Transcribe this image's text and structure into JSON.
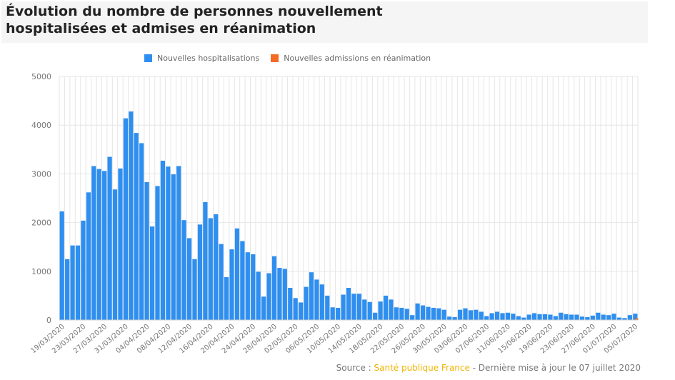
{
  "title": {
    "line1": "Évolution du nombre de personnes nouvellement",
    "line2": "hospitalisées et admises en réanimation"
  },
  "footer": {
    "prefix": "Source : ",
    "source": "Santé publique France",
    "suffix": " - Dernière mise à jour le 07 juillet 2020"
  },
  "colors": {
    "hospitalisations": "#2e8ff0",
    "reanimation": "#f36b24",
    "grid": "#e6e6e6",
    "source_accent": "#f0b400"
  },
  "chart_data": {
    "type": "bar",
    "ylim": [
      0,
      5000
    ],
    "y_ticks": [
      "0",
      "1000",
      "2000",
      "3000",
      "4000",
      "5000"
    ],
    "grid": true,
    "legend_position": "top-center",
    "x_tick_labels": [
      "19/03/2020",
      "23/03/2020",
      "27/03/2020",
      "31/03/2020",
      "04/04/2020",
      "08/04/2020",
      "12/04/2020",
      "16/04/2020",
      "20/04/2020",
      "24/04/2020",
      "28/04/2020",
      "02/05/2020",
      "06/05/2020",
      "10/05/2020",
      "14/05/2020",
      "18/05/2020",
      "22/05/2020",
      "26/05/2020",
      "30/05/2020",
      "03/06/2020",
      "07/06/2020",
      "11/06/2020",
      "15/06/2020",
      "19/06/2020",
      "23/06/2020",
      "27/06/2020",
      "01/07/2020",
      "05/07/2020"
    ],
    "series": [
      {
        "name": "Nouvelles hospitalisations",
        "color": "#2e8ff0",
        "values": [
          2230,
          1250,
          1530,
          1530,
          2040,
          2620,
          3160,
          3100,
          3060,
          3350,
          2680,
          3110,
          4140,
          4280,
          3840,
          3630,
          2830,
          1920,
          2750,
          3270,
          3150,
          2990,
          3160,
          2050,
          1680,
          1250,
          1960,
          2420,
          2090,
          2170,
          1560,
          880,
          1450,
          1880,
          1620,
          1390,
          1350,
          990,
          480,
          960,
          1310,
          1070,
          1050,
          660,
          450,
          360,
          680,
          980,
          830,
          730,
          500,
          260,
          250,
          520,
          660,
          540,
          540,
          420,
          370,
          150,
          380,
          500,
          420,
          260,
          250,
          230,
          100,
          340,
          300,
          270,
          250,
          240,
          210,
          70,
          60,
          210,
          240,
          200,
          210,
          170,
          80,
          140,
          170,
          140,
          150,
          130,
          80,
          50,
          110,
          140,
          120,
          120,
          110,
          80,
          150,
          120,
          110,
          110,
          70,
          60,
          90,
          150,
          110,
          100,
          130,
          50,
          40,
          100,
          130
        ]
      },
      {
        "name": "Nouvelles admissions en réanimation",
        "color": "#f36b24",
        "values": [
          0,
          0,
          0,
          0,
          0,
          0,
          0,
          0,
          0,
          0,
          0,
          0,
          0,
          0,
          0,
          0,
          0,
          0,
          0,
          0,
          0,
          0,
          0,
          0,
          0,
          0,
          0,
          0,
          0,
          0,
          0,
          0,
          0,
          0,
          0,
          0,
          0,
          0,
          0,
          0,
          0,
          0,
          0,
          0,
          0,
          0,
          0,
          0,
          0,
          0,
          0,
          0,
          0,
          0,
          0,
          0,
          0,
          0,
          0,
          0,
          0,
          0,
          0,
          0,
          0,
          0,
          0,
          0,
          0,
          0,
          0,
          0,
          0,
          0,
          0,
          0,
          0,
          0,
          0,
          0,
          0,
          0,
          0,
          0,
          0,
          0,
          0,
          0,
          0,
          0,
          0,
          0,
          0,
          0,
          0,
          0,
          0,
          0,
          0,
          0,
          0,
          0,
          0,
          0,
          0,
          0,
          0,
          0,
          20
        ]
      }
    ]
  }
}
